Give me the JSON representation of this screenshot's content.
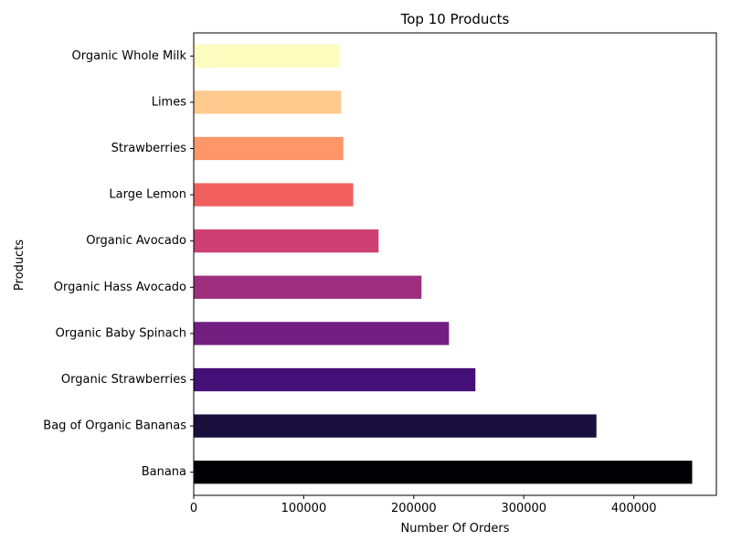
{
  "chart_data": {
    "type": "bar",
    "orientation": "horizontal",
    "title": "Top 10 Products",
    "xlabel": "Number Of Orders",
    "ylabel": "Products",
    "xlim": [
      0,
      475000
    ],
    "xticks": [
      0,
      100000,
      200000,
      300000,
      400000
    ],
    "grid": false,
    "legend": "none",
    "categories": [
      "Banana",
      "Bag of Organic Bananas",
      "Organic Strawberries",
      "Organic Baby Spinach",
      "Organic Hass Avocado",
      "Organic Avocado",
      "Large Lemon",
      "Strawberries",
      "Limes",
      "Organic Whole Milk"
    ],
    "values": [
      453000,
      366000,
      256000,
      232000,
      207000,
      168000,
      145000,
      136000,
      134000,
      133000
    ],
    "colors": [
      "#000004",
      "#180f3d",
      "#440f76",
      "#721f81",
      "#9e2f7f",
      "#cd4071",
      "#f1605d",
      "#fd9668",
      "#feca8d",
      "#fcfdbf"
    ]
  }
}
